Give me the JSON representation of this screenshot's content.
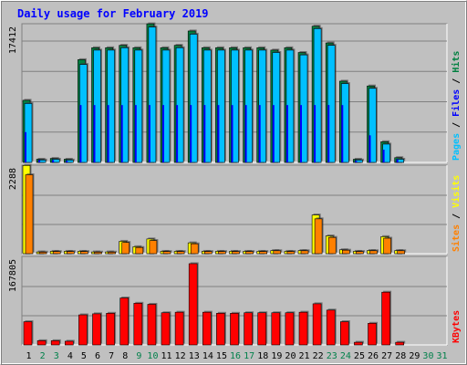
{
  "colors": {
    "background": "#c0c0c0",
    "hits": "#008040",
    "files": "#0000ff",
    "pages": "#00c0ff",
    "visits": "#ffff00",
    "sites": "#ff8000",
    "kbytes": "#ff0000",
    "title": "#0000ff",
    "weekend": "#00804a",
    "weekday": "#000000"
  },
  "chart_data": [
    {
      "type": "bar",
      "title": "Daily usage for February 2019",
      "ylabel_parts": [
        "Pages",
        "Files",
        "Hits"
      ],
      "ymax_label": "17412",
      "ylim": [
        0,
        17412
      ],
      "categories": [
        "1",
        "2",
        "3",
        "4",
        "5",
        "6",
        "7",
        "8",
        "9",
        "10",
        "11",
        "12",
        "13",
        "14",
        "15",
        "16",
        "17",
        "18",
        "19",
        "20",
        "21",
        "22",
        "23",
        "24",
        "25",
        "26",
        "27",
        "28",
        "29",
        "30",
        "31"
      ],
      "weekend_days": [
        "2",
        "3",
        "9",
        "10",
        "16",
        "17",
        "23",
        "24",
        "30",
        "31"
      ],
      "series": [
        {
          "name": "Hits",
          "values": [
            7800,
            400,
            500,
            400,
            12900,
            14400,
            14400,
            14700,
            14400,
            17400,
            14400,
            14700,
            16500,
            14400,
            14400,
            14400,
            14400,
            14400,
            14100,
            14400,
            13800,
            17100,
            15000,
            10200,
            400,
            9600,
            2600,
            600,
            0,
            0,
            0
          ]
        },
        {
          "name": "Files",
          "values": [
            3800,
            300,
            300,
            200,
            7200,
            7200,
            7200,
            7200,
            7200,
            7200,
            7200,
            7200,
            7200,
            7200,
            7200,
            7200,
            7200,
            7200,
            7200,
            7200,
            7200,
            7200,
            7200,
            7200,
            200,
            3400,
            1600,
            400,
            0,
            0,
            0
          ]
        },
        {
          "name": "Pages",
          "values": [
            7400,
            300,
            400,
            300,
            12300,
            14100,
            14100,
            14400,
            14100,
            17000,
            14100,
            14400,
            16100,
            14100,
            14100,
            14100,
            14100,
            14100,
            13800,
            14100,
            13500,
            16800,
            14700,
            9900,
            300,
            9300,
            2300,
            400,
            0,
            0,
            0
          ]
        }
      ]
    },
    {
      "type": "bar",
      "ylabel_parts": [
        "Sites",
        "Visits"
      ],
      "ymax_label": "2288",
      "ylim": [
        0,
        2288
      ],
      "categories": [
        "1",
        "2",
        "3",
        "4",
        "5",
        "6",
        "7",
        "8",
        "9",
        "10",
        "11",
        "12",
        "13",
        "14",
        "15",
        "16",
        "17",
        "18",
        "19",
        "20",
        "21",
        "22",
        "23",
        "24",
        "25",
        "26",
        "27",
        "28",
        "29",
        "30",
        "31"
      ],
      "series": [
        {
          "name": "Visits",
          "values": [
            2280,
            45,
            60,
            60,
            60,
            45,
            45,
            320,
            180,
            380,
            60,
            60,
            280,
            60,
            60,
            60,
            60,
            60,
            80,
            60,
            80,
            1000,
            460,
            100,
            60,
            80,
            440,
            80,
            0,
            0,
            0
          ]
        },
        {
          "name": "Sites",
          "values": [
            2040,
            40,
            55,
            55,
            55,
            40,
            40,
            290,
            160,
            340,
            55,
            55,
            255,
            55,
            55,
            55,
            55,
            55,
            75,
            55,
            75,
            900,
            420,
            90,
            55,
            75,
            400,
            75,
            0,
            0,
            0
          ]
        }
      ]
    },
    {
      "type": "bar",
      "ylabel_parts": [
        "KBytes"
      ],
      "ymax_label": "167805",
      "ylim": [
        0,
        167805
      ],
      "categories": [
        "1",
        "2",
        "3",
        "4",
        "5",
        "6",
        "7",
        "8",
        "9",
        "10",
        "11",
        "12",
        "13",
        "14",
        "15",
        "16",
        "17",
        "18",
        "19",
        "20",
        "21",
        "22",
        "23",
        "24",
        "25",
        "26",
        "27",
        "28",
        "29",
        "30",
        "31"
      ],
      "series": [
        {
          "name": "KBytes",
          "values": [
            44000,
            8000,
            8000,
            7000,
            57000,
            59000,
            60000,
            89000,
            79000,
            77000,
            61000,
            62000,
            154000,
            62000,
            60000,
            60000,
            61000,
            61000,
            61000,
            61000,
            62000,
            78000,
            66000,
            44000,
            5000,
            41000,
            100000,
            5000,
            0,
            0,
            0
          ]
        }
      ]
    }
  ]
}
